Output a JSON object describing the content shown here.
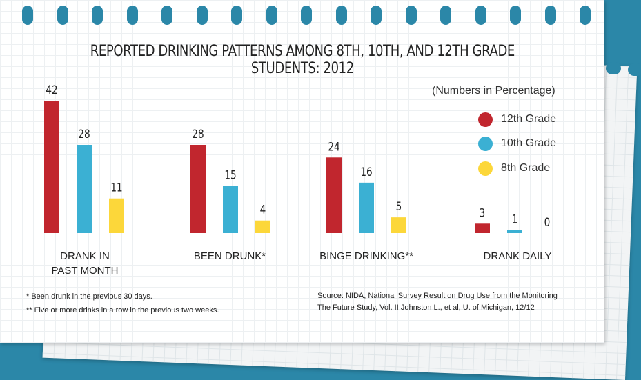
{
  "chart_data": {
    "type": "bar",
    "title": "REPORTED DRINKING PATTERNS AMONG 8TH, 10TH, AND 12TH GRADE STUDENTS: 2012",
    "units_note": "(Numbers in Percentage)",
    "categories": [
      "DRANK IN\nPAST MONTH",
      "BEEN DRUNK*",
      "BINGE DRINKING**",
      "DRANK DAILY"
    ],
    "series": [
      {
        "name": "12th Grade",
        "color": "#c1262e",
        "values": [
          42,
          28,
          24,
          3
        ]
      },
      {
        "name": "10th Grade",
        "color": "#3bb0d3",
        "values": [
          28,
          15,
          16,
          1
        ]
      },
      {
        "name": "8th Grade",
        "color": "#fcd73a",
        "values": [
          11,
          4,
          5,
          0
        ]
      }
    ],
    "ylim": [
      0,
      42
    ],
    "grid": false,
    "legend_position": "right"
  },
  "footnotes": [
    "* Been drunk in the previous 30 days.",
    "** Five or more drinks in a row in the previous two weeks."
  ],
  "source": [
    "Source: NIDA, National Survey Result on Drug Use from the Monitoring",
    "The Future Study, Vol. II Johnston L., et al, U. of Michigan, 12/12"
  ]
}
